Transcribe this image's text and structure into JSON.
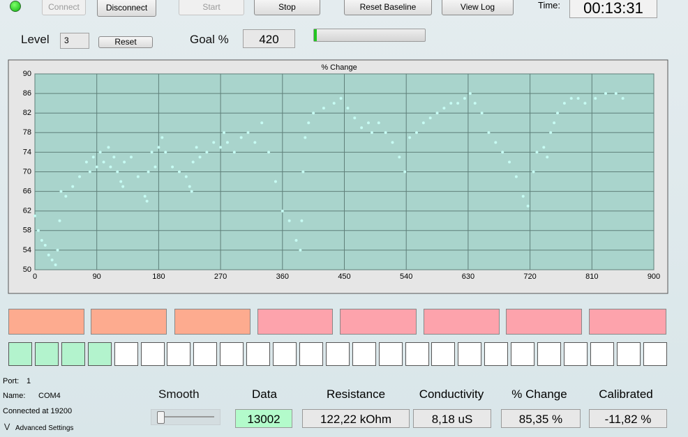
{
  "toolbar": {
    "buttons": [
      "Connect",
      "Disconnect",
      "Start",
      "Stop",
      "Reset Baseline",
      "View Log"
    ],
    "time_label": "Time:",
    "time": "00:13:31"
  },
  "controls": {
    "level_label": "Level",
    "level": "3",
    "reset": "Reset",
    "goal_label": "Goal %",
    "goal": "420"
  },
  "chart_data": {
    "type": "scatter",
    "title": "% Change",
    "color": "#c6fbf3",
    "grid": true,
    "xlim": [
      0,
      900
    ],
    "xticks": [
      0,
      90,
      180,
      270,
      360,
      450,
      540,
      630,
      720,
      810,
      900
    ],
    "ylim": [
      50,
      90
    ],
    "yticks": [
      50,
      54,
      58,
      62,
      66,
      70,
      74,
      78,
      82,
      86,
      90
    ],
    "x": [
      0,
      5,
      10,
      15,
      20,
      25,
      30,
      33,
      36,
      38,
      45,
      55,
      65,
      75,
      80,
      85,
      90,
      95,
      100,
      107,
      110,
      115,
      120,
      125,
      128,
      130,
      140,
      150,
      160,
      163,
      165,
      170,
      175,
      180,
      185,
      190,
      200,
      210,
      220,
      225,
      228,
      230,
      235,
      240,
      250,
      260,
      270,
      275,
      280,
      290,
      300,
      310,
      320,
      330,
      340,
      350,
      360,
      370,
      380,
      386,
      388,
      390,
      393,
      398,
      405,
      420,
      435,
      445,
      455,
      465,
      475,
      485,
      490,
      500,
      510,
      520,
      530,
      538,
      545,
      555,
      565,
      575,
      585,
      595,
      605,
      615,
      625,
      633,
      640,
      650,
      660,
      670,
      680,
      690,
      700,
      710,
      717,
      725,
      730,
      740,
      745,
      750,
      755,
      760,
      770,
      780,
      790,
      800,
      815,
      830,
      845,
      855
    ],
    "values": [
      61,
      58,
      56,
      55,
      53,
      52,
      51,
      54,
      60,
      66,
      65,
      67,
      69,
      72,
      70,
      73,
      71,
      74,
      72,
      75,
      71,
      73,
      70,
      68,
      67,
      72,
      73,
      69,
      65,
      64,
      70,
      74,
      71,
      75,
      77,
      74,
      71,
      70,
      69,
      67,
      66,
      72,
      75,
      73,
      74,
      76,
      75,
      78,
      76,
      74,
      77,
      78,
      76,
      80,
      74,
      68,
      62,
      60,
      56,
      54,
      60,
      70,
      77,
      80,
      82,
      83,
      84,
      85,
      83,
      81,
      79,
      80,
      78,
      80,
      78,
      76,
      73,
      70,
      77,
      78,
      80,
      81,
      82,
      83,
      84,
      84,
      85,
      86,
      84,
      82,
      78,
      76,
      74,
      72,
      69,
      65,
      63,
      70,
      74,
      75,
      73,
      78,
      80,
      82,
      84,
      85,
      85,
      84,
      85,
      86,
      86,
      85
    ]
  },
  "status": {
    "port_label": "Port:",
    "port": "1",
    "name_label": "Name:",
    "name": "COM4",
    "connected": "Connected at 19200",
    "advanced": "Advanced Settings"
  },
  "readouts": {
    "smooth_label": "Smooth",
    "fields": [
      {
        "label": "Data",
        "value": "13002"
      },
      {
        "label": "Resistance",
        "value": "122,22 kOhm"
      },
      {
        "label": "Conductivity",
        "value": "8,18 uS"
      },
      {
        "label": "% Change",
        "value": "85,35 %"
      },
      {
        "label": "Calibrated",
        "value": "-11,82 %"
      }
    ]
  }
}
